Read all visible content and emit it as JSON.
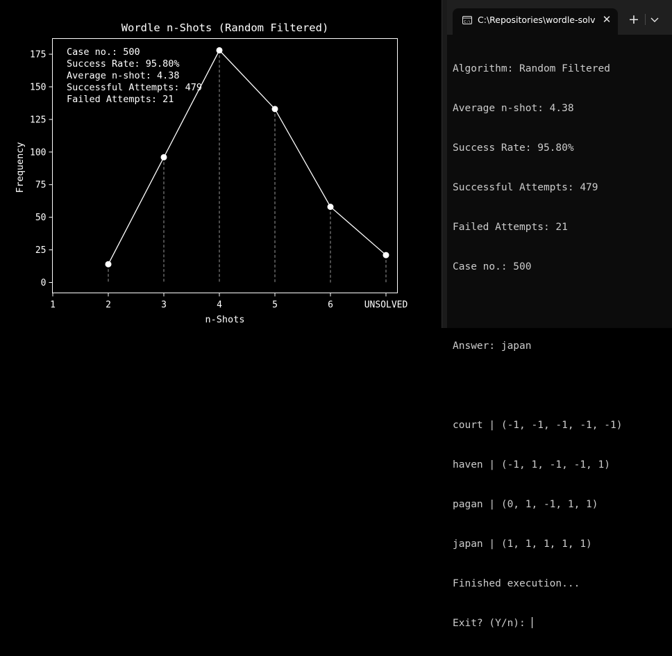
{
  "plot": {
    "chart_data": {
      "type": "line",
      "title": "Wordle n-Shots (Random Filtered)",
      "xlabel": "n-Shots",
      "ylabel": "Frequency",
      "x_ticks": [
        "1",
        "2",
        "3",
        "4",
        "5",
        "6",
        "UNSOLVED"
      ],
      "y_ticks": [
        0,
        25,
        50,
        75,
        100,
        125,
        150,
        175
      ],
      "ylim": [
        -8,
        187
      ],
      "grid": false,
      "series": [
        {
          "categories": [
            "2",
            "3",
            "4",
            "5",
            "6",
            "UNSOLVED"
          ],
          "values": [
            14,
            96,
            178,
            133,
            58,
            21
          ]
        }
      ],
      "stem_lines": true,
      "annotation_lines": [
        "Case no.: 500",
        "Success Rate: 95.80%",
        "Average n-shot: 4.38",
        "Successful Attempts: 479",
        "Failed Attempts: 21"
      ],
      "colors": {
        "background": "#000000",
        "line": "#ffffff",
        "stem": "#9a9a9a",
        "axes": "#ffffff"
      }
    }
  },
  "terminal": {
    "tab_title": "C:\\Repositories\\wordle-solver",
    "tab_icon": "terminal-icon",
    "close_icon": "close-icon",
    "new_tab_icon": "plus-icon",
    "dropdown_icon": "chevron-down-icon",
    "new_tab_label": "+",
    "close_label": "✕",
    "lines": [
      "Algorithm: Random Filtered",
      "Average n-shot: 4.38",
      "Success Rate: 95.80%",
      "Successful Attempts: 479",
      "Failed Attempts: 21",
      "Case no.: 500",
      "",
      "Answer: japan",
      "",
      "court | (-1, -1, -1, -1, -1)",
      "haven | (-1, 1, -1, -1, 1)",
      "pagan | (0, 1, -1, 1, 1)",
      "japan | (1, 1, 1, 1, 1)",
      "Finished execution..."
    ],
    "prompt": "Exit? (Y/n): ",
    "colors": {
      "background": "#0c0c0c",
      "tab_strip": "#1f1f1f",
      "text": "#cccccc"
    }
  }
}
